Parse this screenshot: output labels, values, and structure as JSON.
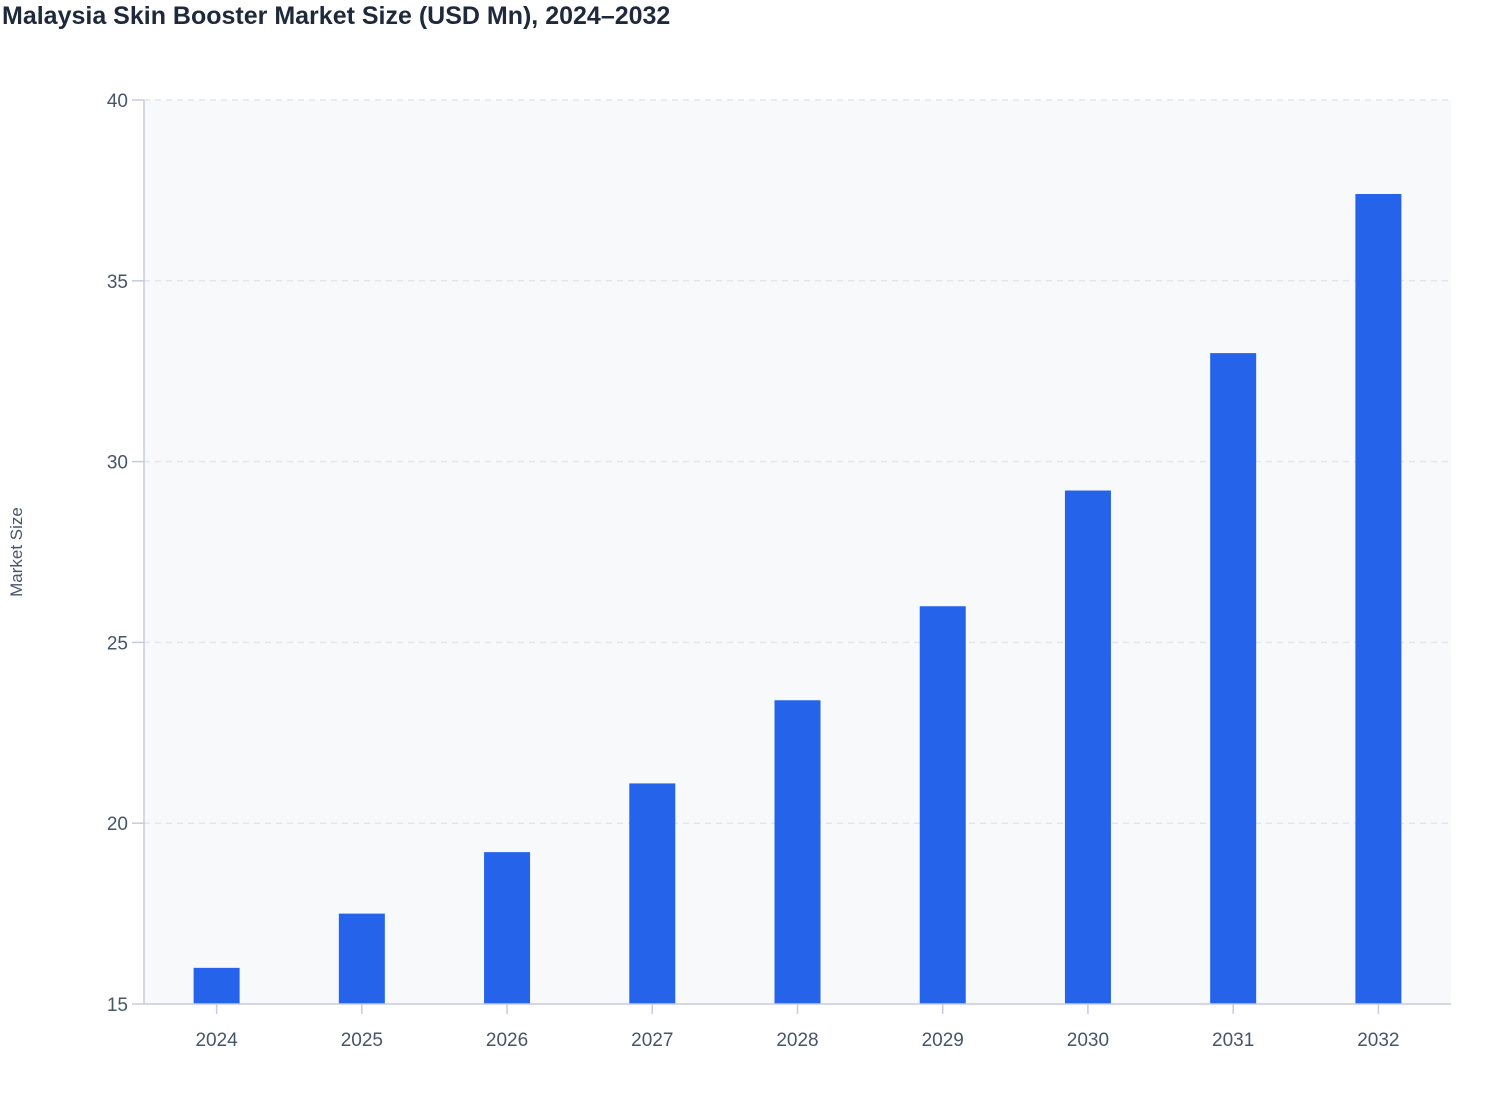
{
  "chart_data": {
    "type": "bar",
    "title": "Malaysia Skin Booster Market Size (USD Mn), 2024–2032",
    "xlabel": "",
    "ylabel": "Market Size",
    "categories": [
      "2024",
      "2025",
      "2026",
      "2027",
      "2028",
      "2029",
      "2030",
      "2031",
      "2032"
    ],
    "values": [
      16.0,
      17.5,
      19.2,
      21.1,
      23.4,
      26.0,
      29.2,
      33.0,
      37.4
    ],
    "ylim": [
      15,
      40
    ],
    "yticks": [
      "15",
      "20",
      "25",
      "30",
      "35",
      "40"
    ],
    "grid": true,
    "legend": "none",
    "colors": {
      "bar": "#2563eb",
      "plot_background": "#f8f9fb",
      "grid": "#e2e5ec",
      "axis": "#c5cbe0",
      "text": "#475569",
      "title": "#1e293b"
    }
  }
}
